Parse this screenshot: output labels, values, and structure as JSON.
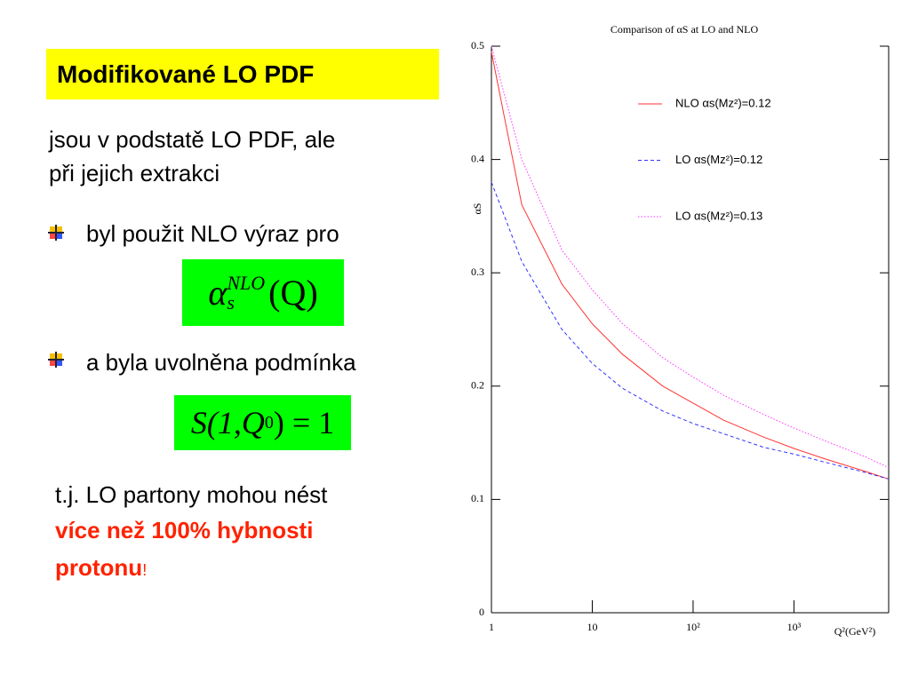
{
  "slide": {
    "title": "Modifikované LO PDF",
    "intro": [
      "jsou  v podstatě LO PDF, ale",
      "při jejich extrakci"
    ],
    "bullets": [
      "byl použit NLO výraz pro",
      "a byla uvolněna podmínka"
    ],
    "formula1": {
      "base": "α",
      "sub": "s",
      "sup": "NLO",
      "arg": "(Q)"
    },
    "formula2": {
      "head": "S(1,Q",
      "sub": "0",
      "tail": ") = 1"
    },
    "note": "t.j. LO partony mohou nést",
    "note_red": [
      "více než 100% hybnosti",
      "protonu"
    ],
    "note_end": "!"
  },
  "chart_data": {
    "type": "line",
    "title": "Comparison of αS at LO and NLO",
    "y_label": "αS",
    "x_label": "Q²(GeV²)",
    "log_x": true,
    "x": [
      1,
      2,
      5,
      10,
      20,
      50,
      100,
      200,
      500,
      1000,
      2000,
      5000,
      8700
    ],
    "series": [
      {
        "name": "NLO αs(Mz²)=0.12",
        "color": "#ff3333",
        "dash": "solid",
        "values": [
          0.495,
          0.36,
          0.29,
          0.255,
          0.228,
          0.2,
          0.185,
          0.17,
          0.155,
          0.145,
          0.136,
          0.125,
          0.118
        ]
      },
      {
        "name": "LO αs(Mz²)=0.12",
        "color": "#3333ff",
        "dash": "dashed",
        "values": [
          0.38,
          0.31,
          0.25,
          0.22,
          0.198,
          0.178,
          0.167,
          0.158,
          0.146,
          0.14,
          0.133,
          0.124,
          0.118
        ]
      },
      {
        "name": "LO αs(Mz²)=0.13",
        "color": "#ff33ff",
        "dash": "dotted",
        "values": [
          0.5,
          0.4,
          0.32,
          0.285,
          0.255,
          0.225,
          0.208,
          0.192,
          0.175,
          0.163,
          0.152,
          0.138,
          0.128
        ]
      }
    ],
    "xlim": [
      1,
      8700
    ],
    "xticks": [
      1,
      10,
      {
        "value": 100,
        "label": "10²"
      },
      {
        "value": 1000,
        "label": "10³"
      }
    ],
    "ylim": [
      0,
      0.5
    ],
    "yticks": [
      0,
      0.1,
      0.2,
      0.3,
      0.4,
      0.5
    ]
  }
}
